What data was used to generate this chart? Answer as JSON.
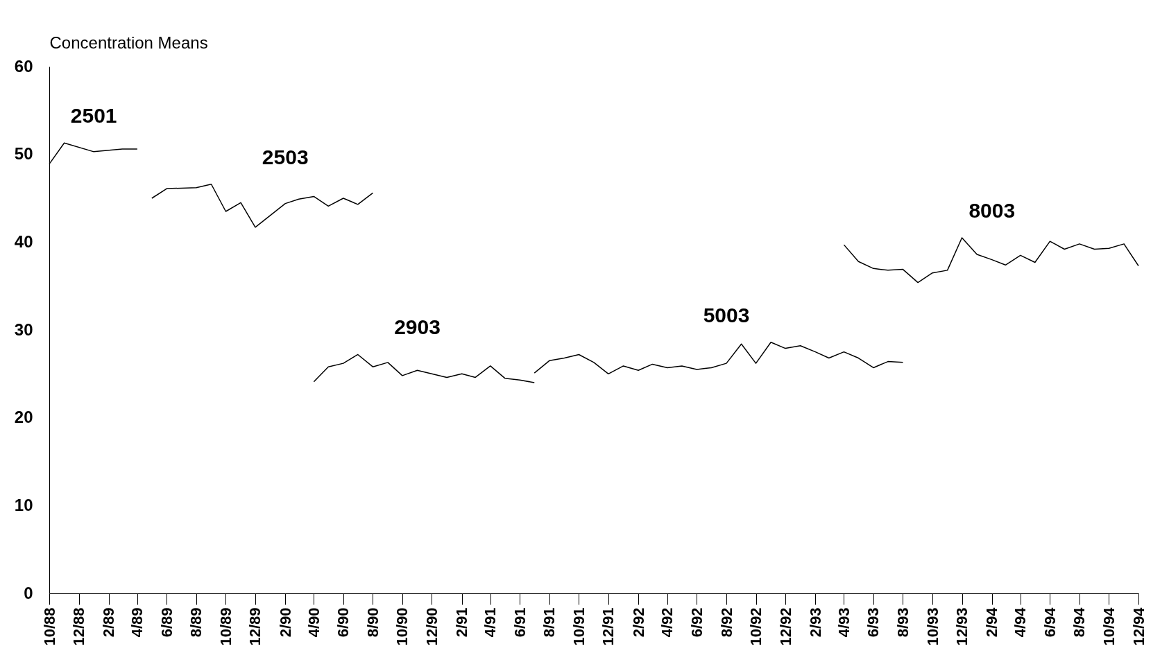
{
  "chart_data": {
    "type": "line",
    "ylabel": "Concentration Means",
    "ylim": [
      0,
      60
    ],
    "yticks": [
      0,
      10,
      20,
      30,
      40,
      50,
      60
    ],
    "xlim": [
      "1988-10",
      "1994-12"
    ],
    "xticks": [
      {
        "value": "1988-10",
        "label": "10/88"
      },
      {
        "value": "1988-12",
        "label": "12/88"
      },
      {
        "value": "1989-02",
        "label": "2/89"
      },
      {
        "value": "1989-04",
        "label": "4/89"
      },
      {
        "value": "1989-06",
        "label": "6/89"
      },
      {
        "value": "1989-08",
        "label": "8/89"
      },
      {
        "value": "1989-10",
        "label": "10/89"
      },
      {
        "value": "1989-12",
        "label": "12/89"
      },
      {
        "value": "1990-02",
        "label": "2/90"
      },
      {
        "value": "1990-04",
        "label": "4/90"
      },
      {
        "value": "1990-06",
        "label": "6/90"
      },
      {
        "value": "1990-08",
        "label": "8/90"
      },
      {
        "value": "1990-10",
        "label": "10/90"
      },
      {
        "value": "1990-12",
        "label": "12/90"
      },
      {
        "value": "1991-02",
        "label": "2/91"
      },
      {
        "value": "1991-04",
        "label": "4/91"
      },
      {
        "value": "1991-06",
        "label": "6/91"
      },
      {
        "value": "1991-08",
        "label": "8/91"
      },
      {
        "value": "1991-10",
        "label": "10/91"
      },
      {
        "value": "1991-12",
        "label": "12/91"
      },
      {
        "value": "1992-02",
        "label": "2/92"
      },
      {
        "value": "1992-04",
        "label": "4/92"
      },
      {
        "value": "1992-06",
        "label": "6/92"
      },
      {
        "value": "1992-08",
        "label": "8/92"
      },
      {
        "value": "1992-10",
        "label": "10/92"
      },
      {
        "value": "1992-12",
        "label": "12/92"
      },
      {
        "value": "1993-02",
        "label": "2/93"
      },
      {
        "value": "1993-04",
        "label": "4/93"
      },
      {
        "value": "1993-06",
        "label": "6/93"
      },
      {
        "value": "1993-08",
        "label": "8/93"
      },
      {
        "value": "1993-10",
        "label": "10/93"
      },
      {
        "value": "1993-12",
        "label": "12/93"
      },
      {
        "value": "1994-02",
        "label": "2/94"
      },
      {
        "value": "1994-04",
        "label": "4/94"
      },
      {
        "value": "1994-06",
        "label": "6/94"
      },
      {
        "value": "1994-08",
        "label": "8/94"
      },
      {
        "value": "1994-10",
        "label": "10/94"
      },
      {
        "value": "1994-12",
        "label": "12/94"
      }
    ],
    "grid": false,
    "marker": "none",
    "line_style": "solid",
    "series": [
      {
        "name": "2501",
        "color": "#000000",
        "x": [
          "1988-10",
          "1988-11",
          "1989-01",
          "1989-03",
          "1989-04"
        ],
        "values": [
          48.9,
          51.3,
          50.3,
          50.6,
          50.6
        ]
      },
      {
        "name": "2503",
        "color": "#000000",
        "x": [
          "1989-05",
          "1989-06",
          "1989-08",
          "1989-09",
          "1989-10",
          "1989-11",
          "1989-12",
          "1990-02",
          "1990-03",
          "1990-04",
          "1990-05",
          "1990-06",
          "1990-07",
          "1990-08"
        ],
        "values": [
          45.0,
          46.1,
          46.2,
          46.6,
          43.5,
          44.5,
          41.7,
          44.4,
          44.9,
          45.2,
          44.1,
          45.0,
          44.3,
          45.6
        ]
      },
      {
        "name": "2903",
        "color": "#000000",
        "x": [
          "1990-04",
          "1990-05",
          "1990-06",
          "1990-07",
          "1990-08",
          "1990-09",
          "1990-10",
          "1990-11",
          "1991-01",
          "1991-02",
          "1991-03",
          "1991-04",
          "1991-05",
          "1991-06",
          "1991-07"
        ],
        "values": [
          24.1,
          25.8,
          26.2,
          27.2,
          25.8,
          26.3,
          24.8,
          25.4,
          24.6,
          25.0,
          24.6,
          25.9,
          24.5,
          24.3,
          24.0
        ]
      },
      {
        "name": "5003",
        "color": "#000000",
        "x": [
          "1991-07",
          "1991-08",
          "1991-09",
          "1991-10",
          "1991-11",
          "1991-12",
          "1992-01",
          "1992-02",
          "1992-03",
          "1992-04",
          "1992-05",
          "1992-06",
          "1992-07",
          "1992-08",
          "1992-09",
          "1992-10",
          "1992-11",
          "1992-12",
          "1993-01",
          "1993-02",
          "1993-03",
          "1993-04",
          "1993-05",
          "1993-06",
          "1993-07",
          "1993-08"
        ],
        "values": [
          25.1,
          26.5,
          26.8,
          27.2,
          26.3,
          25.0,
          25.9,
          25.4,
          26.1,
          25.7,
          25.9,
          25.5,
          25.7,
          26.2,
          28.4,
          26.2,
          28.6,
          27.9,
          28.2,
          27.5,
          26.8,
          27.5,
          26.8,
          25.7,
          26.4,
          26.3
        ]
      },
      {
        "name": "8003",
        "color": "#000000",
        "x": [
          "1993-04",
          "1993-05",
          "1993-06",
          "1993-07",
          "1993-08",
          "1993-09",
          "1993-10",
          "1993-11",
          "1993-12",
          "1994-01",
          "1994-02",
          "1994-03",
          "1994-04",
          "1994-05",
          "1994-06",
          "1994-07",
          "1994-08",
          "1994-09",
          "1994-10",
          "1994-11",
          "1994-12"
        ],
        "values": [
          39.7,
          37.8,
          37.0,
          36.8,
          36.9,
          35.4,
          36.5,
          36.8,
          40.5,
          38.6,
          38.0,
          37.4,
          38.5,
          37.7,
          40.1,
          39.2,
          39.8,
          39.2,
          39.3,
          39.8,
          37.3
        ]
      }
    ]
  }
}
